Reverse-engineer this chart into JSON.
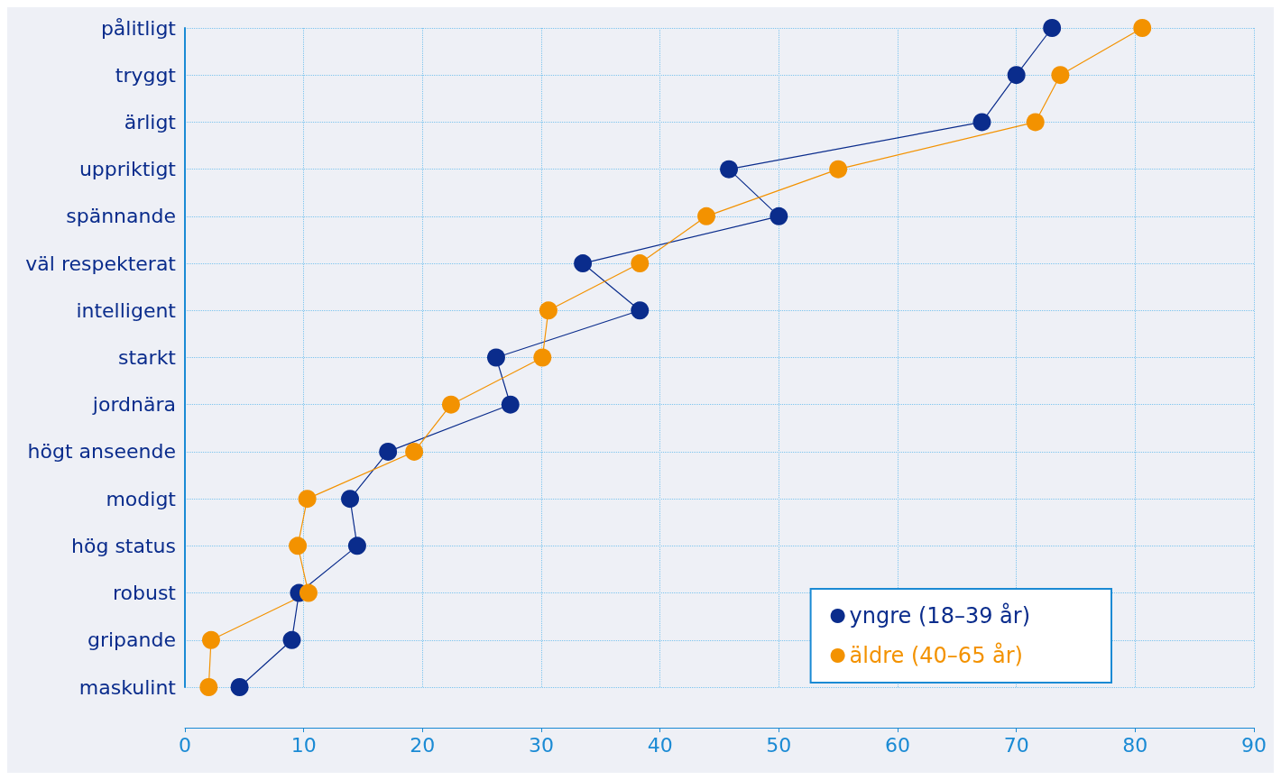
{
  "chart_data": {
    "type": "line",
    "orientation": "horizontal",
    "categories": [
      "pålitligt",
      "tryggt",
      "ärligt",
      "uppriktigt",
      "spännande",
      "väl respekterat",
      "intelligent",
      "starkt",
      "jordnära",
      "högt anseende",
      "modigt",
      "hög status",
      "robust",
      "gripande",
      "maskulint"
    ],
    "series": [
      {
        "name": "yngre (18–39 år)",
        "color": "#0a2c8c",
        "values": [
          73,
          70,
          67.1,
          45.8,
          50,
          33.5,
          38.3,
          26.2,
          27.4,
          17.1,
          13.9,
          14.5,
          9.6,
          9.0,
          4.6
        ]
      },
      {
        "name": "äldre (40–65 år)",
        "color": "#f39200",
        "values": [
          80.6,
          73.7,
          71.6,
          55,
          43.9,
          38.3,
          30.6,
          30.1,
          22.4,
          19.3,
          10.3,
          9.5,
          10.4,
          2.2,
          2.0
        ]
      }
    ],
    "xlim": [
      0,
      90
    ],
    "xticks": [
      0,
      10,
      20,
      30,
      40,
      50,
      60,
      70,
      80,
      90
    ],
    "grid": true,
    "legend": "bottom right",
    "marker": "circle"
  }
}
